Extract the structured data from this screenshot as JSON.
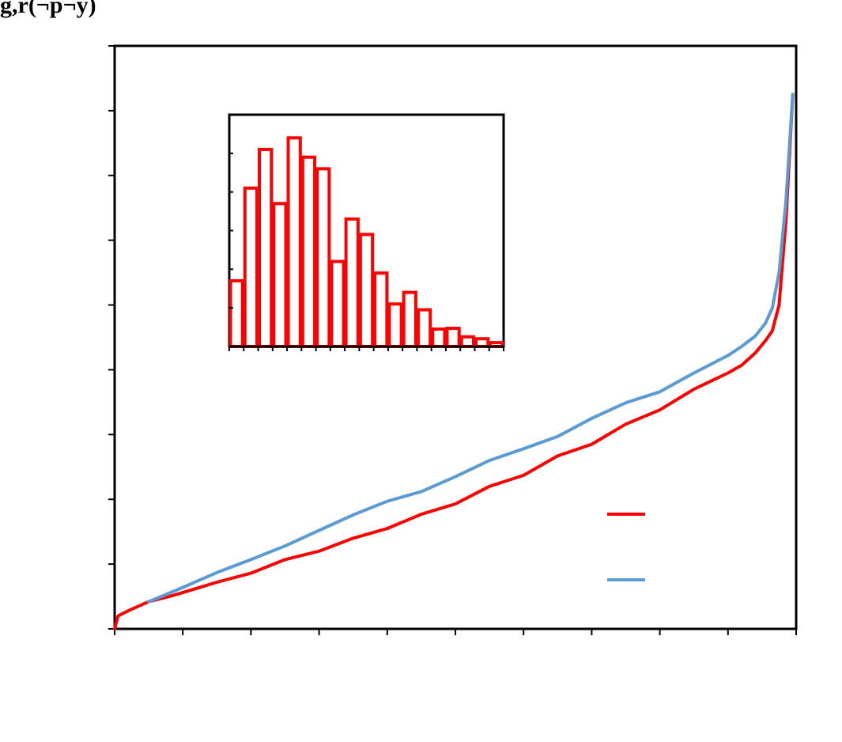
{
  "title_fragment": "g,r(¬p¬y)",
  "colors": {
    "red": "#ff0000",
    "blue": "#5b9bd5",
    "axis": "#000000"
  },
  "chart_data": [
    {
      "type": "line",
      "xlim": [
        0,
        10
      ],
      "ylim": [
        0,
        9
      ],
      "x_ticks": [
        0,
        1,
        2,
        3,
        4,
        5,
        6,
        7,
        8,
        9,
        10
      ],
      "y_ticks": [
        0,
        1,
        2,
        3,
        4,
        5,
        6,
        7,
        8,
        9
      ],
      "tick_labels_visible": false,
      "legend_placement": "lower-right",
      "series": [
        {
          "color": "#ff0000",
          "x": [
            0,
            0.05,
            0.2,
            0.5,
            0.8,
            1.0,
            1.5,
            2.0,
            2.5,
            3.0,
            3.5,
            4.0,
            4.5,
            5.0,
            5.5,
            6.0,
            6.5,
            7.0,
            7.5,
            8.0,
            8.5,
            9.0,
            9.2,
            9.4,
            9.55,
            9.65,
            9.75,
            9.85,
            9.95
          ],
          "y": [
            0.0,
            0.2,
            0.28,
            0.42,
            0.5,
            0.56,
            0.72,
            0.86,
            1.07,
            1.2,
            1.4,
            1.55,
            1.77,
            1.93,
            2.2,
            2.37,
            2.67,
            2.85,
            3.16,
            3.38,
            3.7,
            3.95,
            4.07,
            4.26,
            4.45,
            4.6,
            5.0,
            6.3,
            8.25
          ]
        },
        {
          "color": "#5b9bd5",
          "x": [
            0.5,
            1.0,
            1.5,
            2.0,
            2.5,
            3.0,
            3.5,
            4.0,
            4.5,
            5.0,
            5.5,
            6.0,
            6.5,
            7.0,
            7.5,
            8.0,
            8.5,
            9.0,
            9.2,
            9.4,
            9.55,
            9.65,
            9.75,
            9.85,
            9.95
          ],
          "y": [
            0.42,
            0.64,
            0.87,
            1.07,
            1.28,
            1.52,
            1.76,
            1.97,
            2.12,
            2.35,
            2.6,
            2.78,
            2.97,
            3.25,
            3.49,
            3.66,
            3.95,
            4.22,
            4.36,
            4.52,
            4.72,
            4.95,
            5.5,
            6.6,
            8.25
          ]
        }
      ]
    },
    {
      "type": "bar",
      "ylim": [
        0,
        6
      ],
      "y_ticks": [
        0,
        1,
        2,
        3,
        4,
        5,
        6
      ],
      "tick_labels_visible": false,
      "bar_color": "#ff0000",
      "values": [
        1.7,
        4.1,
        5.1,
        3.7,
        5.4,
        4.9,
        4.6,
        2.2,
        3.3,
        2.9,
        1.9,
        1.1,
        1.4,
        0.95,
        0.45,
        0.47,
        0.25,
        0.2,
        0.1
      ]
    }
  ]
}
